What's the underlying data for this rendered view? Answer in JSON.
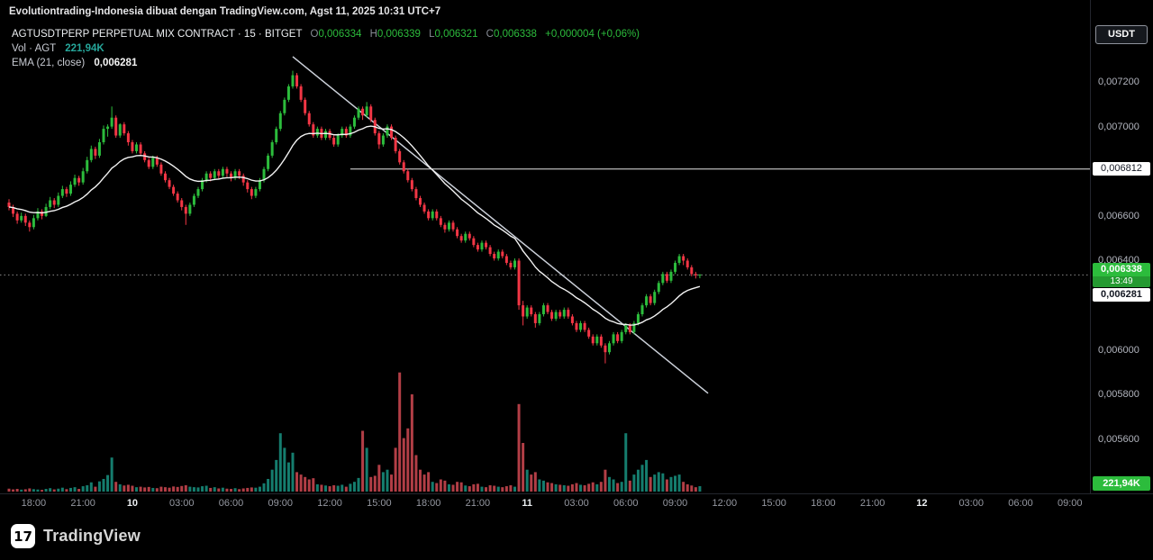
{
  "topbar": {
    "attribution": "Evolutiontrading-Indonesia dibuat dengan TradingView.com, Agst 11, 2025 10:31 UTC+7"
  },
  "legend": {
    "symbol": "AGTUSDTPERP PERPETUAL MIX CONTRACT · 15 · BITGET",
    "ohlc": [
      {
        "k": "O",
        "v": "0,006334"
      },
      {
        "k": "H",
        "v": "0,006339"
      },
      {
        "k": "L",
        "v": "0,006321"
      },
      {
        "k": "C",
        "v": "0,006338"
      }
    ],
    "change": "+0,000004 (+0,06%)",
    "vol_label": "Vol · AGT",
    "vol_value": "221,94K",
    "ema_label": "EMA (21, close)",
    "ema_value": "0,006281"
  },
  "price_axis": {
    "currency_button": "USDT",
    "ticks": [
      {
        "label": "0,007200",
        "value": 7200
      },
      {
        "label": "0,007000",
        "value": 7000
      },
      {
        "label": "0,006600",
        "value": 6600
      },
      {
        "label": "0,006400",
        "value": 6400
      },
      {
        "label": "0,006000",
        "value": 6000
      },
      {
        "label": "0,005800",
        "value": 5800
      },
      {
        "label": "0,005600",
        "value": 5600
      }
    ],
    "line_label": {
      "text": "0,006812",
      "value": 6812
    },
    "last_price_badge": {
      "price": "0,006338",
      "countdown": "13:49",
      "value": 6338
    },
    "ema_badge": {
      "text": "0,006281",
      "value": 6281
    },
    "volume_badge": "221,94K"
  },
  "time_axis": {
    "ticks": [
      {
        "label": "18:00"
      },
      {
        "label": "21:00"
      },
      {
        "label": "10",
        "strong": true
      },
      {
        "label": "03:00"
      },
      {
        "label": "06:00"
      },
      {
        "label": "09:00"
      },
      {
        "label": "12:00"
      },
      {
        "label": "15:00"
      },
      {
        "label": "18:00"
      },
      {
        "label": "21:00"
      },
      {
        "label": "11",
        "strong": true
      },
      {
        "label": "03:00"
      },
      {
        "label": "06:00"
      },
      {
        "label": "09:00"
      },
      {
        "label": "12:00"
      },
      {
        "label": "15:00"
      },
      {
        "label": "18:00"
      },
      {
        "label": "21:00"
      },
      {
        "label": "12",
        "strong": true
      },
      {
        "label": "03:00"
      },
      {
        "label": "06:00"
      },
      {
        "label": "09:00"
      }
    ]
  },
  "footer": {
    "brand": "TradingView",
    "logo_glyph": "17"
  },
  "colors": {
    "background": "#000000",
    "candle_up": "#2cbc3c",
    "candle_down": "#f23645",
    "volume_up": "#157d6e",
    "volume_down": "#b23e46",
    "ema_line": "#f2f2f2",
    "trendline": "#ccd1da",
    "horizontal_line": "#e6e6e6",
    "last_price_line": "#8a8a8a",
    "axis_text": "#b2b5be",
    "legend_green": "#2cbc3c",
    "vol_value_teal": "#26a69a",
    "badge_green": "#2cbc3c",
    "separator": "#23262e"
  },
  "chart_data": {
    "type": "candlestick",
    "title": "AGTUSDTPERP PERPETUAL MIX CONTRACT",
    "exchange": "BITGET",
    "interval_minutes": 15,
    "units": {
      "price_factor": 1e-06,
      "volume": "K"
    },
    "price_axis_visible_range": [
      5370,
      7560
    ],
    "legend_last": {
      "open": 6334,
      "high": 6339,
      "low": 6321,
      "close": 6338,
      "change": 4,
      "change_pct": 0.06
    },
    "ohlcv_format": "[open, high, low, close, volumeK] with prices in units of 0.000001 USDT",
    "candles": [
      [
        6660,
        6675,
        6625,
        6640,
        120
      ],
      [
        6640,
        6650,
        6595,
        6610,
        90
      ],
      [
        6610,
        6620,
        6565,
        6580,
        110
      ],
      [
        6580,
        6615,
        6570,
        6600,
        80
      ],
      [
        6600,
        6610,
        6555,
        6570,
        95
      ],
      [
        6570,
        6580,
        6530,
        6550,
        130
      ],
      [
        6550,
        6605,
        6540,
        6590,
        100
      ],
      [
        6590,
        6635,
        6580,
        6620,
        85
      ],
      [
        6620,
        6630,
        6585,
        6600,
        70
      ],
      [
        6600,
        6655,
        6595,
        6640,
        110
      ],
      [
        6640,
        6685,
        6630,
        6670,
        140
      ],
      [
        6670,
        6680,
        6635,
        6650,
        90
      ],
      [
        6650,
        6705,
        6640,
        6690,
        120
      ],
      [
        6690,
        6735,
        6680,
        6720,
        160
      ],
      [
        6720,
        6730,
        6685,
        6700,
        100
      ],
      [
        6700,
        6755,
        6690,
        6740,
        150
      ],
      [
        6740,
        6785,
        6730,
        6770,
        180
      ],
      [
        6770,
        6780,
        6735,
        6750,
        110
      ],
      [
        6750,
        6815,
        6740,
        6800,
        220
      ],
      [
        6800,
        6865,
        6790,
        6850,
        260
      ],
      [
        6850,
        6915,
        6840,
        6900,
        380
      ],
      [
        6900,
        6910,
        6855,
        6870,
        200
      ],
      [
        6870,
        6945,
        6860,
        6930,
        420
      ],
      [
        6930,
        7005,
        6920,
        6990,
        520
      ],
      [
        6990,
        7010,
        6955,
        7000,
        680
      ],
      [
        7000,
        7090,
        6990,
        7040,
        1400
      ],
      [
        7040,
        7050,
        6950,
        6960,
        400
      ],
      [
        6960,
        7015,
        6950,
        7010,
        300
      ],
      [
        7010,
        7020,
        6960,
        6970,
        250
      ],
      [
        6970,
        6980,
        6915,
        6930,
        280
      ],
      [
        6930,
        6940,
        6880,
        6890,
        240
      ],
      [
        6890,
        6930,
        6880,
        6920,
        180
      ],
      [
        6920,
        6930,
        6870,
        6880,
        200
      ],
      [
        6880,
        6890,
        6840,
        6850,
        170
      ],
      [
        6850,
        6860,
        6810,
        6820,
        190
      ],
      [
        6820,
        6870,
        6810,
        6860,
        150
      ],
      [
        6860,
        6870,
        6820,
        6830,
        140
      ],
      [
        6830,
        6840,
        6780,
        6790,
        200
      ],
      [
        6790,
        6800,
        6750,
        6760,
        180
      ],
      [
        6760,
        6770,
        6720,
        6730,
        160
      ],
      [
        6730,
        6740,
        6690,
        6700,
        210
      ],
      [
        6700,
        6710,
        6660,
        6670,
        190
      ],
      [
        6670,
        6680,
        6625,
        6640,
        230
      ],
      [
        6640,
        6650,
        6560,
        6610,
        260
      ],
      [
        6610,
        6660,
        6600,
        6650,
        200
      ],
      [
        6650,
        6700,
        6640,
        6690,
        180
      ],
      [
        6690,
        6730,
        6680,
        6720,
        170
      ],
      [
        6720,
        6770,
        6710,
        6760,
        220
      ],
      [
        6760,
        6800,
        6750,
        6790,
        240
      ],
      [
        6790,
        6800,
        6755,
        6770,
        150
      ],
      [
        6770,
        6810,
        6760,
        6800,
        180
      ],
      [
        6800,
        6810,
        6765,
        6780,
        130
      ],
      [
        6780,
        6820,
        6770,
        6810,
        160
      ],
      [
        6810,
        6820,
        6775,
        6790,
        120
      ],
      [
        6790,
        6800,
        6755,
        6770,
        110
      ],
      [
        6770,
        6810,
        6760,
        6800,
        140
      ],
      [
        6800,
        6810,
        6765,
        6780,
        100
      ],
      [
        6780,
        6790,
        6735,
        6750,
        130
      ],
      [
        6750,
        6760,
        6705,
        6720,
        150
      ],
      [
        6720,
        6730,
        6675,
        6690,
        170
      ],
      [
        6690,
        6730,
        6680,
        6720,
        160
      ],
      [
        6720,
        6770,
        6710,
        6760,
        200
      ],
      [
        6760,
        6820,
        6750,
        6810,
        340
      ],
      [
        6810,
        6880,
        6800,
        6870,
        520
      ],
      [
        6870,
        6940,
        6860,
        6930,
        900
      ],
      [
        6930,
        7000,
        6920,
        6990,
        1300
      ],
      [
        6990,
        7070,
        6980,
        7060,
        2400
      ],
      [
        7060,
        7130,
        7050,
        7120,
        1800
      ],
      [
        7120,
        7190,
        7110,
        7180,
        1200
      ],
      [
        7180,
        7250,
        7170,
        7230,
        1600
      ],
      [
        7230,
        7240,
        7170,
        7180,
        800
      ],
      [
        7180,
        7190,
        7110,
        7120,
        700
      ],
      [
        7120,
        7130,
        7050,
        7060,
        600
      ],
      [
        7060,
        7070,
        7000,
        7010,
        500
      ],
      [
        7010,
        7020,
        6950,
        6960,
        550
      ],
      [
        6960,
        7000,
        6950,
        6990,
        300
      ],
      [
        6990,
        7000,
        6940,
        6950,
        280
      ],
      [
        6950,
        6990,
        6940,
        6980,
        250
      ],
      [
        6980,
        6990,
        6940,
        6950,
        220
      ],
      [
        6950,
        6960,
        6910,
        6920,
        260
      ],
      [
        6920,
        6970,
        6910,
        6960,
        240
      ],
      [
        6960,
        7000,
        6950,
        6990,
        280
      ],
      [
        6990,
        7000,
        6950,
        6960,
        200
      ],
      [
        6960,
        7010,
        6950,
        7000,
        320
      ],
      [
        7000,
        7050,
        6990,
        7040,
        400
      ],
      [
        7040,
        7090,
        7030,
        7080,
        560
      ],
      [
        7080,
        7090,
        7030,
        7050,
        2500
      ],
      [
        7050,
        7110,
        7040,
        7090,
        1800
      ],
      [
        7090,
        7100,
        7020,
        7030,
        600
      ],
      [
        7030,
        7040,
        6960,
        6970,
        650
      ],
      [
        6970,
        6980,
        6900,
        6920,
        1100
      ],
      [
        6920,
        6970,
        6910,
        6960,
        800
      ],
      [
        6960,
        7010,
        6950,
        7000,
        900
      ],
      [
        7000,
        7010,
        6940,
        6950,
        700
      ],
      [
        6950,
        6960,
        6880,
        6890,
        1800
      ],
      [
        6890,
        6900,
        6830,
        6840,
        4900
      ],
      [
        6840,
        6850,
        6790,
        6800,
        2200
      ],
      [
        6800,
        6810,
        6750,
        6760,
        2600
      ],
      [
        6760,
        6770,
        6710,
        6720,
        4000
      ],
      [
        6720,
        6730,
        6670,
        6680,
        1500
      ],
      [
        6680,
        6690,
        6640,
        6650,
        900
      ],
      [
        6650,
        6660,
        6610,
        6620,
        700
      ],
      [
        6620,
        6630,
        6580,
        6590,
        800
      ],
      [
        6590,
        6630,
        6580,
        6620,
        400
      ],
      [
        6620,
        6630,
        6580,
        6590,
        350
      ],
      [
        6590,
        6600,
        6550,
        6560,
        500
      ],
      [
        6560,
        6570,
        6525,
        6540,
        450
      ],
      [
        6540,
        6580,
        6530,
        6570,
        300
      ],
      [
        6570,
        6580,
        6530,
        6540,
        280
      ],
      [
        6540,
        6550,
        6500,
        6510,
        400
      ],
      [
        6510,
        6520,
        6480,
        6490,
        380
      ],
      [
        6490,
        6530,
        6480,
        6520,
        250
      ],
      [
        6520,
        6530,
        6490,
        6500,
        220
      ],
      [
        6500,
        6510,
        6460,
        6470,
        300
      ],
      [
        6470,
        6480,
        6440,
        6450,
        320
      ],
      [
        6450,
        6490,
        6440,
        6480,
        200
      ],
      [
        6480,
        6490,
        6450,
        6460,
        180
      ],
      [
        6460,
        6470,
        6420,
        6430,
        260
      ],
      [
        6430,
        6440,
        6400,
        6410,
        240
      ],
      [
        6410,
        6450,
        6400,
        6440,
        200
      ],
      [
        6440,
        6450,
        6410,
        6420,
        180
      ],
      [
        6420,
        6430,
        6380,
        6390,
        220
      ],
      [
        6390,
        6400,
        6360,
        6370,
        260
      ],
      [
        6370,
        6410,
        6360,
        6400,
        200
      ],
      [
        6400,
        6410,
        6180,
        6200,
        3600
      ],
      [
        6200,
        6220,
        6110,
        6150,
        2000
      ],
      [
        6150,
        6200,
        6140,
        6190,
        900
      ],
      [
        6190,
        6200,
        6150,
        6160,
        700
      ],
      [
        6160,
        6170,
        6100,
        6120,
        800
      ],
      [
        6120,
        6170,
        6110,
        6160,
        500
      ],
      [
        6160,
        6210,
        6150,
        6200,
        450
      ],
      [
        6200,
        6210,
        6160,
        6170,
        380
      ],
      [
        6170,
        6180,
        6130,
        6140,
        350
      ],
      [
        6140,
        6180,
        6130,
        6170,
        300
      ],
      [
        6170,
        6180,
        6140,
        6150,
        280
      ],
      [
        6150,
        6190,
        6140,
        6180,
        260
      ],
      [
        6180,
        6190,
        6140,
        6150,
        240
      ],
      [
        6150,
        6160,
        6110,
        6120,
        300
      ],
      [
        6120,
        6130,
        6080,
        6090,
        350
      ],
      [
        6090,
        6130,
        6080,
        6120,
        280
      ],
      [
        6120,
        6130,
        6080,
        6090,
        260
      ],
      [
        6090,
        6100,
        6050,
        6060,
        320
      ],
      [
        6060,
        6070,
        6020,
        6030,
        380
      ],
      [
        6030,
        6070,
        6020,
        6060,
        300
      ],
      [
        6060,
        6070,
        6010,
        6020,
        400
      ],
      [
        6020,
        6030,
        5940,
        5990,
        900
      ],
      [
        5990,
        6040,
        5980,
        6030,
        600
      ],
      [
        6030,
        6080,
        6020,
        6070,
        500
      ],
      [
        6070,
        6080,
        6030,
        6040,
        350
      ],
      [
        6040,
        6090,
        6030,
        6080,
        400
      ],
      [
        6080,
        6120,
        6070,
        6110,
        2400
      ],
      [
        6110,
        6120,
        6070,
        6080,
        450
      ],
      [
        6080,
        6130,
        6070,
        6120,
        700
      ],
      [
        6120,
        6170,
        6110,
        6160,
        900
      ],
      [
        6160,
        6210,
        6150,
        6200,
        1100
      ],
      [
        6200,
        6250,
        6190,
        6240,
        1300
      ],
      [
        6240,
        6250,
        6200,
        6210,
        600
      ],
      [
        6210,
        6270,
        6200,
        6260,
        700
      ],
      [
        6260,
        6310,
        6250,
        6300,
        800
      ],
      [
        6300,
        6350,
        6290,
        6340,
        750
      ],
      [
        6340,
        6350,
        6300,
        6310,
        500
      ],
      [
        6310,
        6360,
        6300,
        6350,
        600
      ],
      [
        6350,
        6400,
        6340,
        6390,
        650
      ],
      [
        6390,
        6430,
        6380,
        6420,
        700
      ],
      [
        6420,
        6430,
        6380,
        6400,
        400
      ],
      [
        6400,
        6410,
        6360,
        6370,
        300
      ],
      [
        6370,
        6380,
        6330,
        6340,
        250
      ],
      [
        6340,
        6350,
        6320,
        6334,
        180
      ],
      [
        6334,
        6339,
        6321,
        6338,
        222
      ]
    ],
    "overlays": {
      "ema": {
        "length": 21,
        "source": "close",
        "last_value": 6281
      },
      "horizontal_line": {
        "price": 6812,
        "start_index": 83
      },
      "trendline": {
        "from": {
          "index": 69,
          "price": 7313
        },
        "to": {
          "index": 170,
          "price": 5806
        }
      },
      "last_price_line": 6338
    },
    "legend_position": "top-left",
    "grid": false
  }
}
